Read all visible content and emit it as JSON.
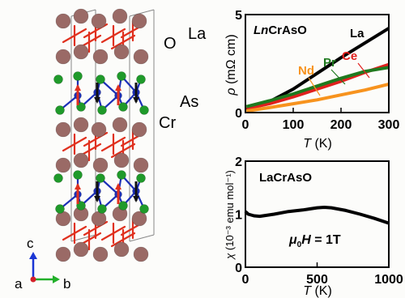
{
  "structure": {
    "atom_labels": [
      {
        "text": "La",
        "color": "#e0301e"
      },
      {
        "text": "O",
        "color": "#e0301e"
      },
      {
        "text": "As",
        "color": "#2e9a2e"
      },
      {
        "text": "Cr",
        "color": "#1c2fb8"
      }
    ],
    "axes": [
      {
        "text": "c"
      },
      {
        "text": "a"
      },
      {
        "text": "b"
      }
    ],
    "colors": {
      "la": "#9a6a66",
      "o": "#e0301e",
      "as": "#1f9a2a",
      "cr": "#1c2fb8",
      "spin_up": "#e0301e",
      "spin_down": "#111111"
    }
  },
  "chart_data": [
    {
      "type": "line",
      "title": "LnCrAsO",
      "title_prefix": "Ln",
      "title_rest": "CrAsO",
      "ylabel_symbol": "ρ",
      "ylabel_units": "(mΩ cm)",
      "xlabel_symbol": "T",
      "xlabel_units": "(K)",
      "xlim": [
        0,
        300
      ],
      "ylim": [
        0,
        5
      ],
      "xticks": [
        0,
        100,
        200,
        300
      ],
      "yticks": [
        0,
        5
      ],
      "series": [
        {
          "name": "La",
          "color": "#000000",
          "x": [
            2,
            50,
            100,
            150,
            200,
            250,
            300
          ],
          "y": [
            0.15,
            0.55,
            1.2,
            2.0,
            2.8,
            3.55,
            4.3
          ]
        },
        {
          "name": "Ce",
          "color": "#e0201e",
          "x": [
            2,
            50,
            100,
            150,
            200,
            250,
            300
          ],
          "y": [
            0.2,
            0.45,
            0.8,
            1.2,
            1.6,
            2.05,
            2.45
          ]
        },
        {
          "name": "Pr",
          "color": "#1f7a1f",
          "x": [
            2,
            50,
            100,
            150,
            200,
            250,
            300
          ],
          "y": [
            0.3,
            0.6,
            0.95,
            1.35,
            1.75,
            2.1,
            2.3
          ]
        },
        {
          "name": "Nd",
          "color": "#f7931e",
          "x": [
            2,
            50,
            100,
            150,
            200,
            250,
            300
          ],
          "y": [
            0.08,
            0.25,
            0.45,
            0.65,
            0.9,
            1.15,
            1.45
          ]
        }
      ]
    },
    {
      "type": "line",
      "title": "LaCrAsO",
      "annotation_mu": "μ",
      "annotation_sub": "0",
      "annotation_rest": "H = 1T",
      "ylabel_symbol": "χ",
      "ylabel_units": "(10⁻³ emu mol⁻¹)",
      "xlabel_symbol": "T",
      "xlabel_units": "(K)",
      "xlim": [
        0,
        1000
      ],
      "ylim": [
        0,
        2
      ],
      "xticks": [
        0,
        500,
        1000
      ],
      "yticks": [
        0,
        1,
        2
      ],
      "series": [
        {
          "color": "#000000",
          "x": [
            0,
            20,
            60,
            100,
            200,
            300,
            400,
            500,
            550,
            600,
            700,
            800,
            900,
            1000
          ],
          "y": [
            1.05,
            1.0,
            0.97,
            0.96,
            1.0,
            1.05,
            1.08,
            1.12,
            1.13,
            1.12,
            1.07,
            1.0,
            0.92,
            0.83
          ]
        }
      ]
    }
  ]
}
